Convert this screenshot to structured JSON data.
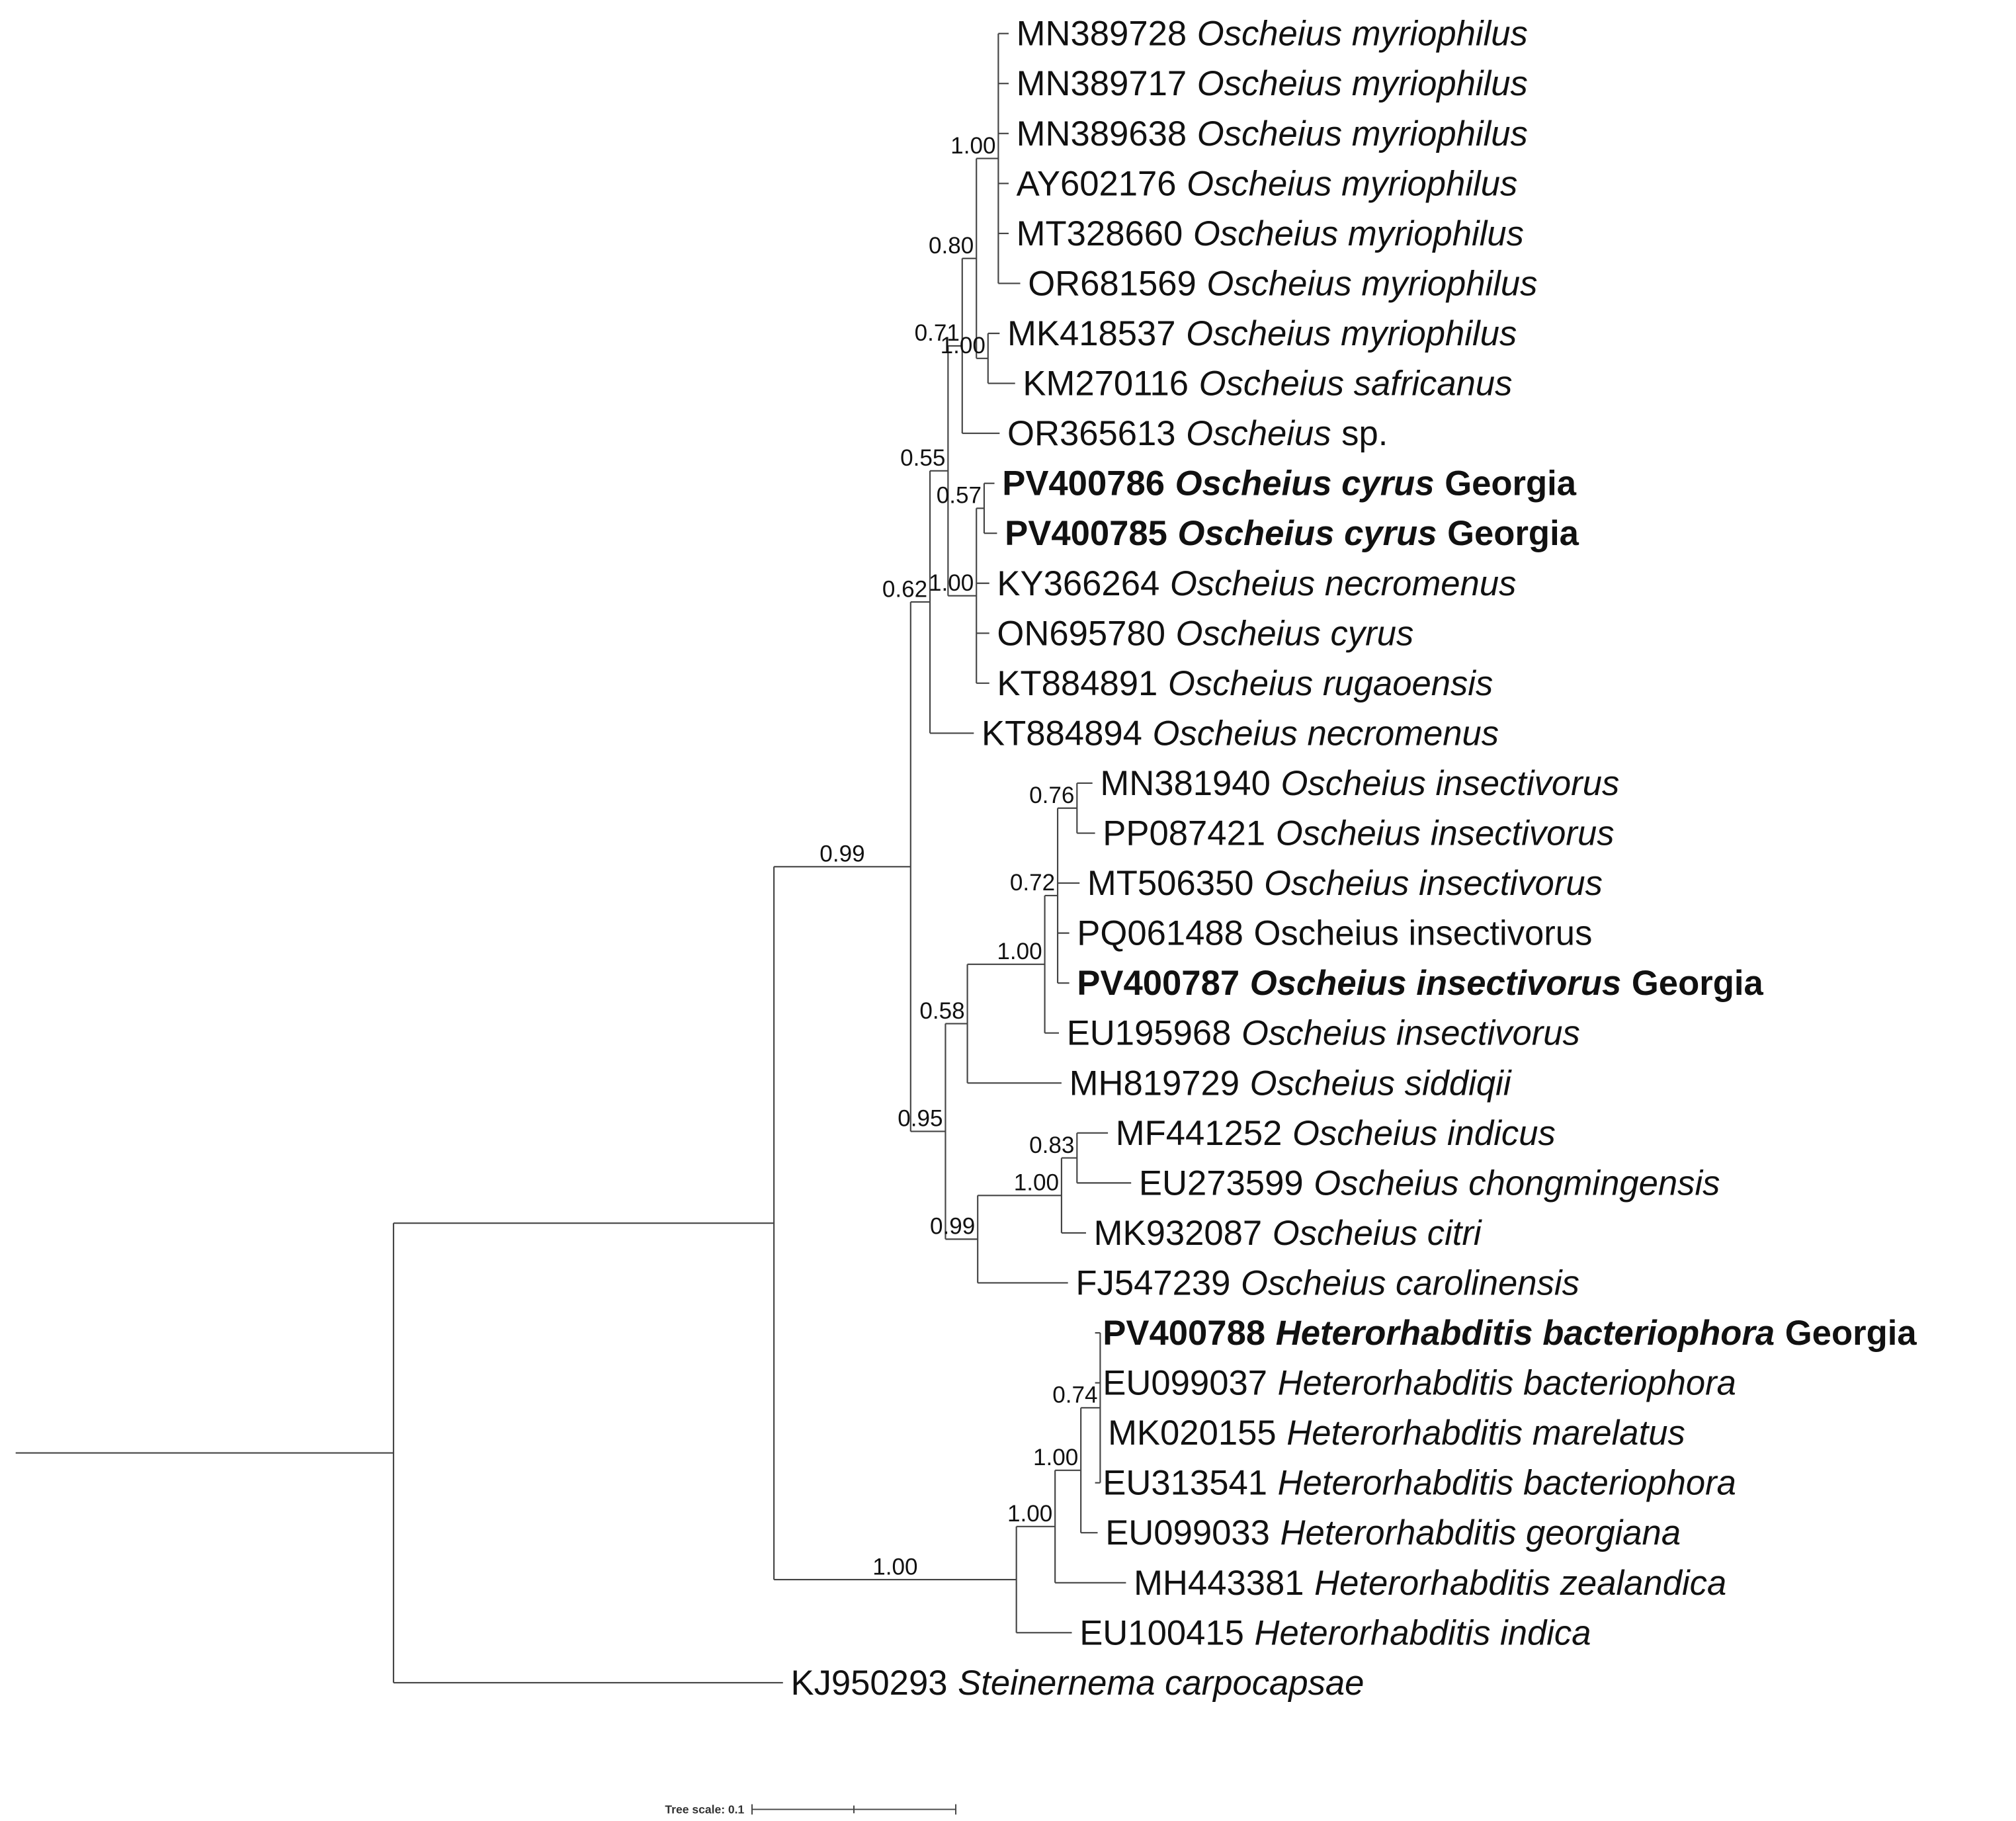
{
  "leaves": [
    {
      "accession": "MN389728",
      "species": "Oscheius myriophilus"
    },
    {
      "accession": "MN389717",
      "species": "Oscheius myriophilus"
    },
    {
      "accession": "MN389638",
      "species": "Oscheius myriophilus"
    },
    {
      "accession": "AY602176",
      "species": "Oscheius myriophilus"
    },
    {
      "accession": "MT328660",
      "species": "Oscheius myriophilus"
    },
    {
      "accession": "OR681569",
      "species": "Oscheius myriophilus"
    },
    {
      "accession": "MK418537",
      "species": "Oscheius myriophilus"
    },
    {
      "accession": "KM270116",
      "species": "Oscheius safricanus"
    },
    {
      "accession": "OR365613",
      "species": "Oscheius",
      "suffix": "sp."
    },
    {
      "accession": "PV400786",
      "species": "Oscheius cyrus",
      "suffix": "Georgia",
      "bold": true
    },
    {
      "accession": "PV400785",
      "species": "Oscheius cyrus",
      "suffix": "Georgia",
      "bold": true
    },
    {
      "accession": "KY366264",
      "species": "Oscheius necromenus"
    },
    {
      "accession": "ON695780",
      "species": "Oscheius cyrus"
    },
    {
      "accession": "KT884891",
      "species": "Oscheius rugaoensis"
    },
    {
      "accession": "KT884894",
      "species": "Oscheius necromenus"
    },
    {
      "accession": "MN381940",
      "species": "Oscheius insectivorus"
    },
    {
      "accession": "PP087421",
      "species": "Oscheius insectivorus"
    },
    {
      "accession": "MT506350",
      "species": "Oscheius insectivorus"
    },
    {
      "accession": "PQ061488",
      "species": "Oscheius insectivorus",
      "italic": false
    },
    {
      "accession": "PV400787",
      "species": "Oscheius insectivorus",
      "suffix": "Georgia",
      "bold": true
    },
    {
      "accession": "EU195968",
      "species": "Oscheius insectivorus"
    },
    {
      "accession": "MH819729",
      "species": "Oscheius siddiqii"
    },
    {
      "accession": "MF441252",
      "species": "Oscheius indicus"
    },
    {
      "accession": "EU273599",
      "species": "Oscheius chongmingensis"
    },
    {
      "accession": "MK932087",
      "species": "Oscheius citri"
    },
    {
      "accession": "FJ547239",
      "species": "Oscheius carolinensis"
    },
    {
      "accession": "PV400788",
      "species": "Heterorhabditis bacteriophora",
      "suffix": "Georgia",
      "bold": true
    },
    {
      "accession": "EU099037",
      "species": "Heterorhabditis bacteriophora"
    },
    {
      "accession": "MK020155",
      "species": "Heterorhabditis marelatus"
    },
    {
      "accession": "EU313541",
      "species": "Heterorhabditis bacteriophora"
    },
    {
      "accession": "EU099033",
      "species": "Heterorhabditis georgiana"
    },
    {
      "accession": "MH443381",
      "species": "Heterorhabditis zealandica"
    },
    {
      "accession": "EU100415",
      "species": "Heterorhabditis indica"
    },
    {
      "accession": "KJ950293",
      "species": "Steinernema carpocapsae"
    }
  ],
  "supports": [
    "1.00",
    "1.00",
    "0.80",
    "0.71",
    "0.57",
    "1.00",
    "0.55",
    "0.62",
    "0.76",
    "0.72",
    "1.00",
    "0.58",
    "0.83",
    "1.00",
    "0.99",
    "0.95",
    "0.99",
    "0.74",
    "1.00",
    "1.00",
    "1.00"
  ],
  "tree_scale_label": "Tree scale: 0.1"
}
